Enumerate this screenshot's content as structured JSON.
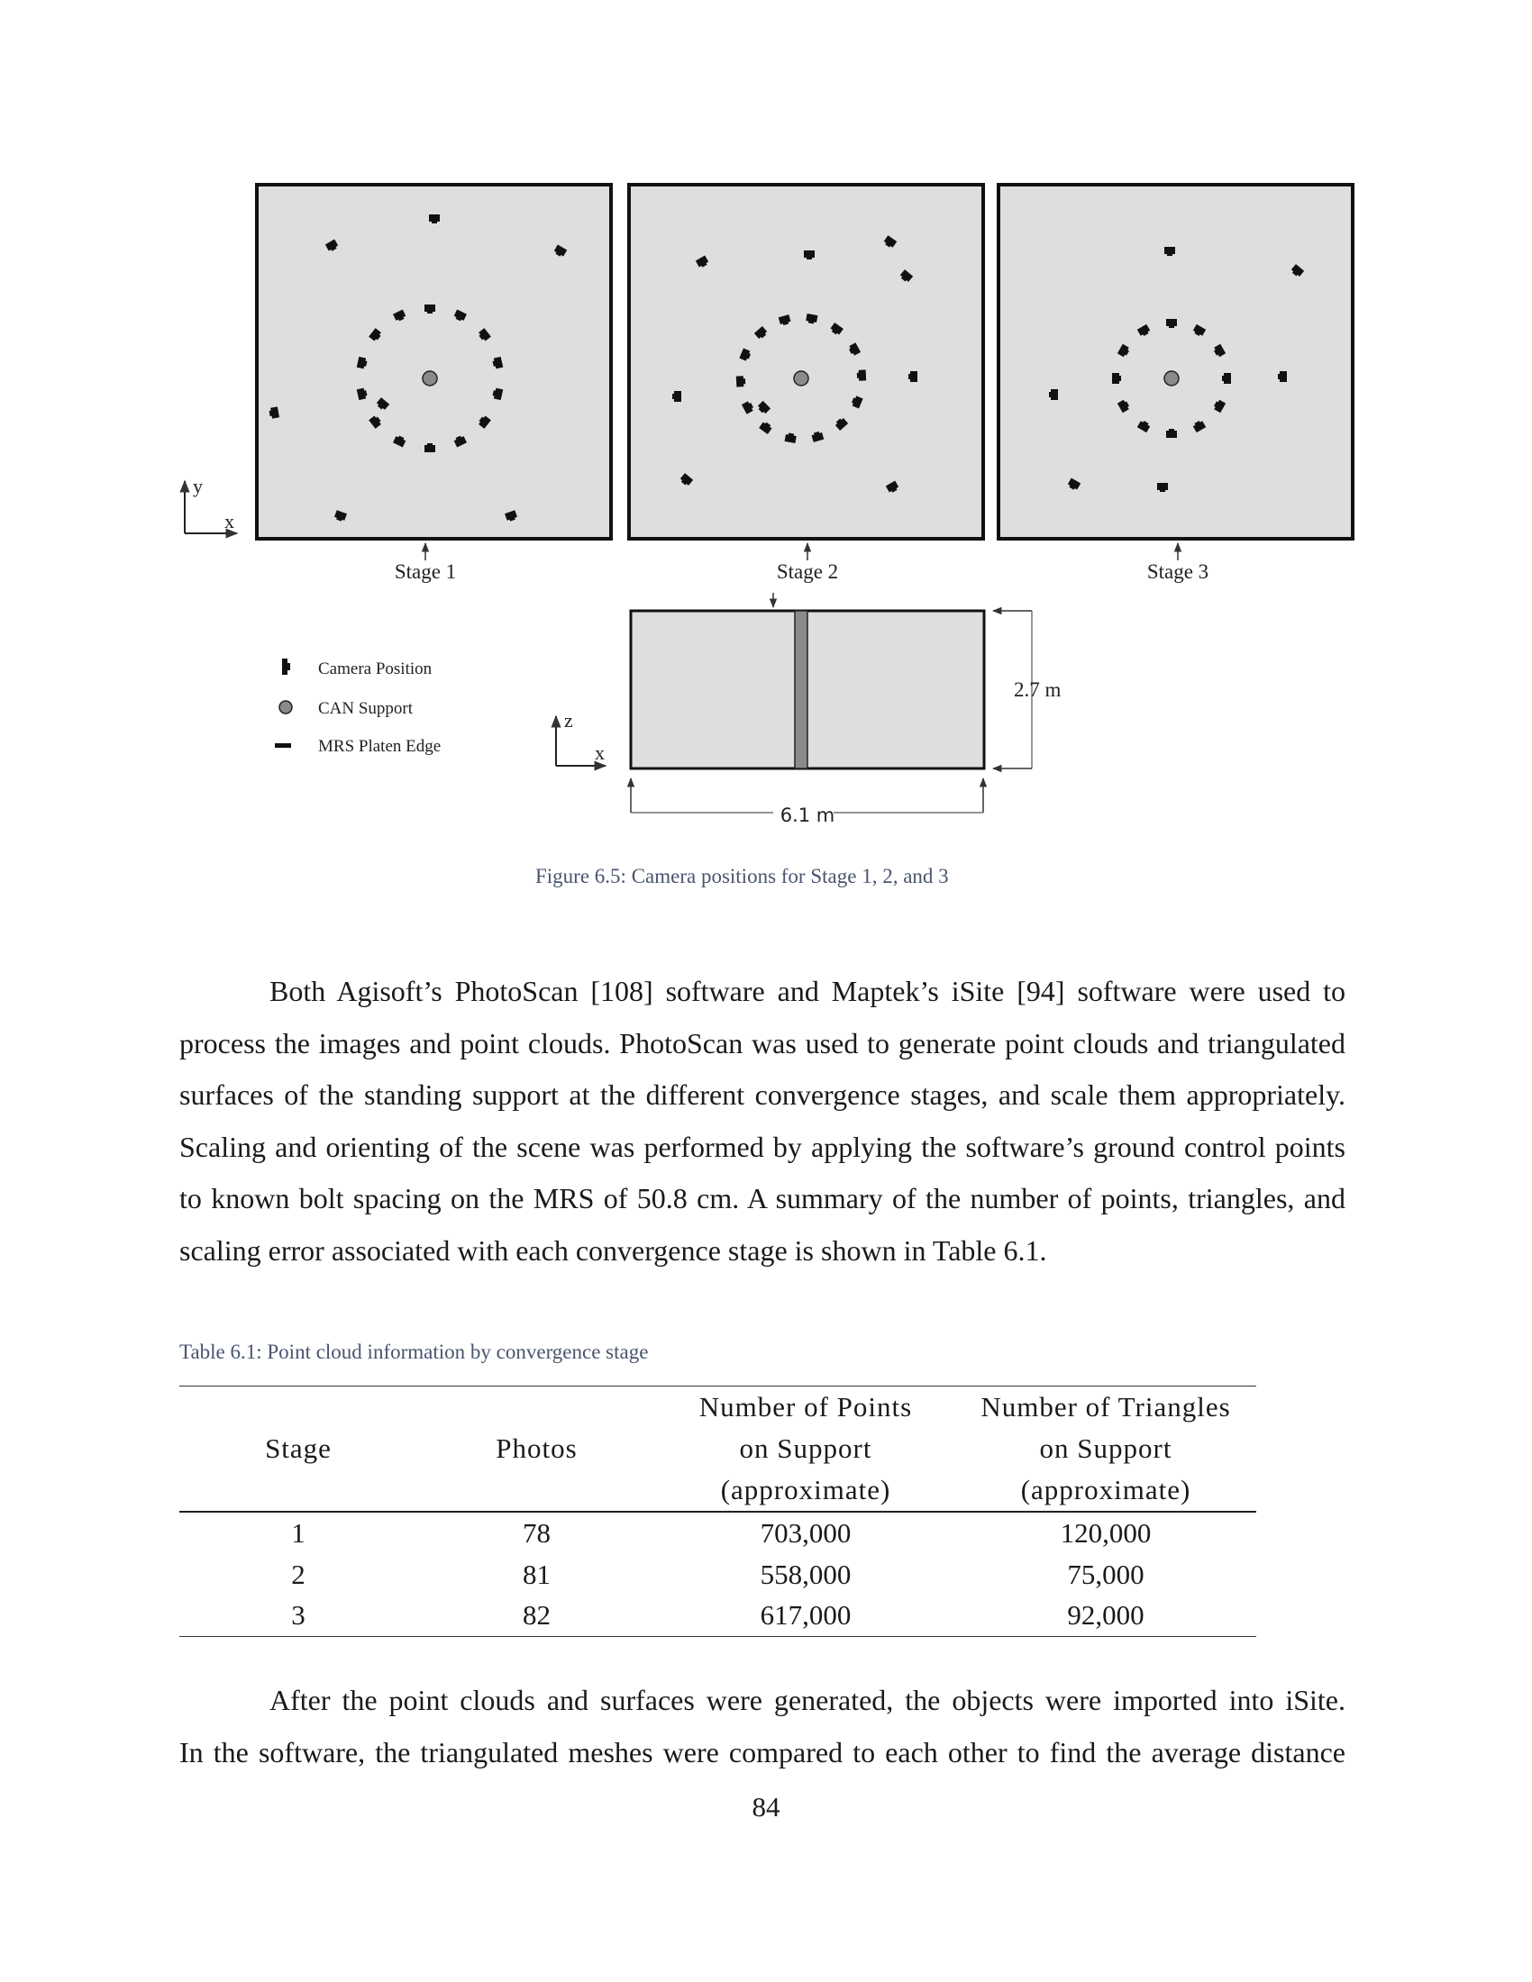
{
  "figure": {
    "axes_xy": {
      "vertical": "y",
      "horizontal": "x"
    },
    "axes_zx": {
      "vertical": "z",
      "horizontal": "x"
    },
    "stage_labels": [
      "Stage 1",
      "Stage 2",
      "Stage 3"
    ],
    "legend": [
      {
        "icon": "camera-icon",
        "label": "Camera Position"
      },
      {
        "icon": "can-support-icon",
        "label": "CAN Support"
      },
      {
        "icon": "platen-edge-icon",
        "label": "MRS Platen Edge"
      }
    ],
    "height_dimension": "2.7 m",
    "width_dimension": "6.1 m",
    "caption": "Figure 6.5:  Camera positions for Stage 1, 2, and 3",
    "colors": {
      "panel_fill": "#dedede",
      "panel_border": "#111111",
      "support_fill": "#8a8a8a",
      "caption_color": "#4a5470"
    }
  },
  "paragraph1": [
    "Both Agisoft’s PhotoScan [108] software and Maptek’s iSite [94] software were used to",
    "process the images and point clouds.  PhotoScan was used to generate point clouds and triangulated",
    "surfaces of the standing support at the different convergence stages, and scale them appropriately.",
    "Scaling and orienting of the scene was performed by applying the software’s ground control points",
    "to known bolt spacing on the MRS of 50.8 cm.  A summary of the number of points, triangles, and",
    "scaling error associated with each convergence stage is shown in Table 6.1."
  ],
  "table": {
    "caption": "Table 6.1:  Point cloud information by convergence stage",
    "headers": {
      "stage": "Stage",
      "photos": "Photos",
      "points": [
        "Number of Points",
        "on Support",
        "(approximate)"
      ],
      "triangles": [
        "Number of Triangles",
        "on Support",
        "(approximate)"
      ]
    },
    "rows": [
      {
        "stage": "1",
        "photos": "78",
        "points": "703,000",
        "triangles": "120,000"
      },
      {
        "stage": "2",
        "photos": "81",
        "points": "558,000",
        "triangles": "75,000"
      },
      {
        "stage": "3",
        "photos": "82",
        "points": "617,000",
        "triangles": "92,000"
      }
    ]
  },
  "paragraph2": [
    "After the point clouds and surfaces were generated, the objects were imported into iSite.",
    "In the software, the triangulated meshes were compared to each other to find the average distance"
  ],
  "page_number": "84"
}
